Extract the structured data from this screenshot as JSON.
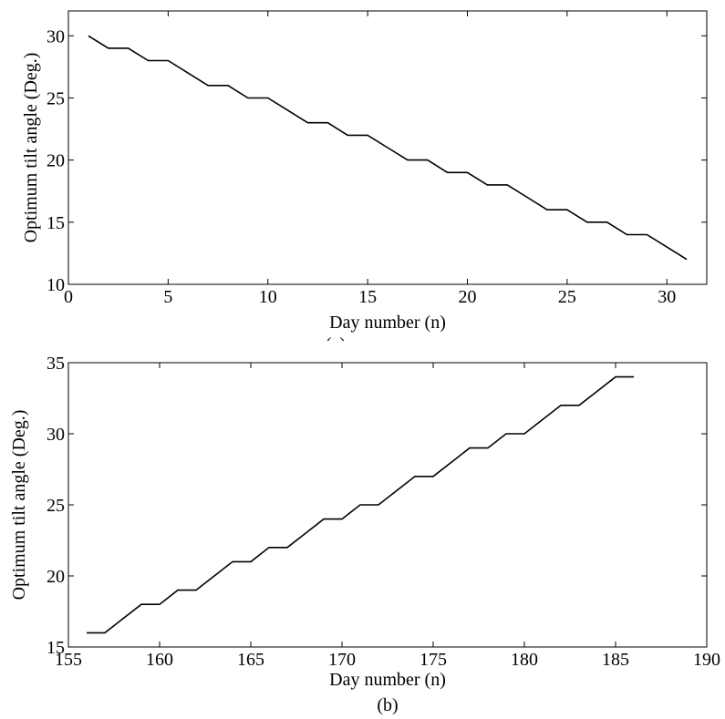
{
  "chart_data": [
    {
      "type": "line",
      "title": "",
      "xlabel": "Day number (n)",
      "ylabel": "Optimum tilt angle (Deg.)",
      "caption": "(a)",
      "xlim": [
        0,
        32
      ],
      "ylim": [
        10,
        32
      ],
      "xticks": [
        0,
        5,
        10,
        15,
        20,
        25,
        30
      ],
      "yticks": [
        10,
        15,
        20,
        25,
        30
      ],
      "grid": false,
      "series": [
        {
          "x": [
            1,
            2,
            3,
            4,
            5,
            6,
            7,
            8,
            9,
            10,
            11,
            12,
            13,
            14,
            15,
            16,
            17,
            18,
            19,
            20,
            21,
            22,
            23,
            24,
            25,
            26,
            27,
            28,
            29,
            30,
            31
          ],
          "y": [
            30,
            29,
            29,
            28,
            28,
            27,
            26,
            26,
            25,
            25,
            24,
            23,
            23,
            22,
            22,
            21,
            20,
            20,
            19,
            19,
            18,
            18,
            17,
            16,
            16,
            15,
            15,
            14,
            14,
            13,
            12
          ]
        }
      ]
    },
    {
      "type": "line",
      "title": "",
      "xlabel": "Day number (n)",
      "ylabel": "Optimum tilt angle (Deg.)",
      "caption": "(b)",
      "xlim": [
        155,
        190
      ],
      "ylim": [
        15,
        35
      ],
      "xticks": [
        155,
        160,
        165,
        170,
        175,
        180,
        185,
        190
      ],
      "yticks": [
        15,
        20,
        25,
        30,
        35
      ],
      "grid": false,
      "series": [
        {
          "x": [
            156,
            157,
            158,
            159,
            160,
            161,
            162,
            163,
            164,
            165,
            166,
            167,
            168,
            169,
            170,
            171,
            172,
            173,
            174,
            175,
            176,
            177,
            178,
            179,
            180,
            181,
            182,
            183,
            184,
            185,
            186
          ],
          "y": [
            16,
            16,
            17,
            18,
            18,
            19,
            19,
            20,
            21,
            21,
            22,
            22,
            23,
            24,
            24,
            25,
            25,
            26,
            27,
            27,
            28,
            29,
            29,
            30,
            30,
            31,
            32,
            32,
            33,
            34,
            34
          ]
        }
      ]
    }
  ]
}
